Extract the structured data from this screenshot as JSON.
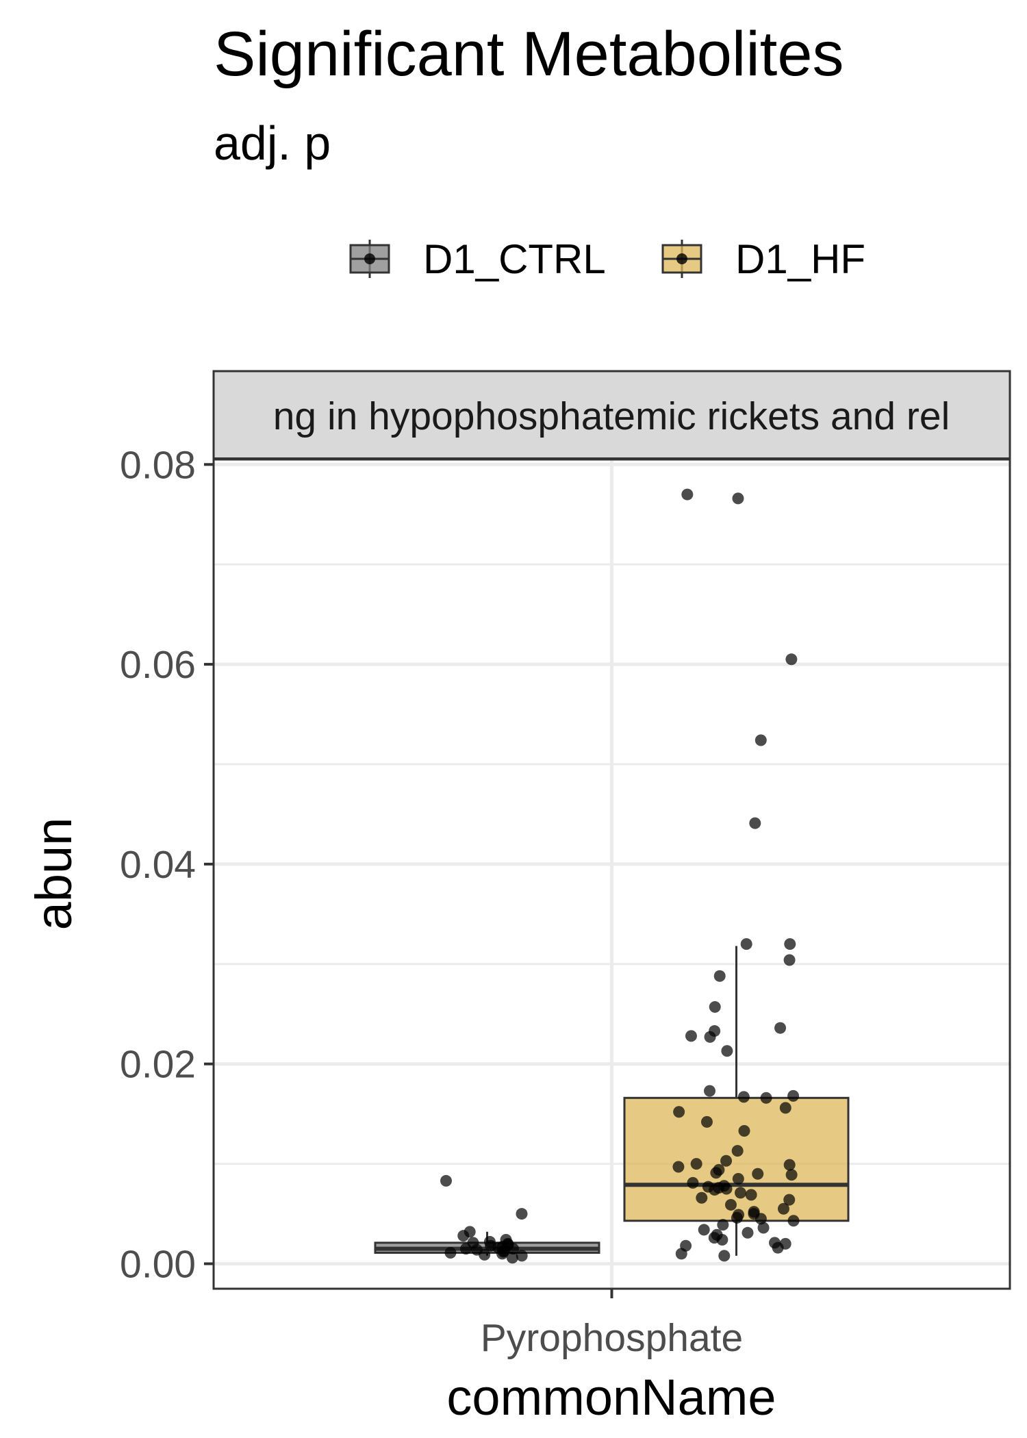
{
  "chart_data": {
    "type": "box",
    "title": "Significant Metabolites",
    "subtitle": "adj. p",
    "xlabel": "commonName",
    "ylabel": "abun",
    "facet_label": "ng in hypophosphatemic rickets and rel",
    "categories": [
      "Pyrophosphate"
    ],
    "ylim": [
      -0.0025,
      0.0805
    ],
    "yticks": [
      0.0,
      0.02,
      0.04,
      0.06,
      0.08
    ],
    "ytick_labels": [
      "0.00",
      "0.02",
      "0.04",
      "0.06",
      "0.08"
    ],
    "grid": true,
    "legend_position": "top",
    "series": [
      {
        "name": "D1_CTRL",
        "color": "#808080",
        "box": {
          "q1": 0.0011,
          "median": 0.0015,
          "q3": 0.0021,
          "whisker_low": 0.0008,
          "whisker_high": 0.0032
        },
        "points": [
          0.0083,
          0.005,
          0.0032,
          0.0028,
          0.0024,
          0.0022,
          0.0021,
          0.002,
          0.0019,
          0.0018,
          0.0017,
          0.0016,
          0.0015,
          0.0015,
          0.0014,
          0.0013,
          0.0012,
          0.0011,
          0.001,
          0.0009,
          0.0008,
          0.0006
        ]
      },
      {
        "name": "D1_HF",
        "color": "#deb75a",
        "box": {
          "q1": 0.0043,
          "median": 0.0079,
          "q3": 0.0166,
          "whisker_low": 0.0008,
          "whisker_high": 0.0318
        },
        "points": [
          0.077,
          0.0766,
          0.0605,
          0.0524,
          0.0441,
          0.032,
          0.032,
          0.0304,
          0.0288,
          0.0257,
          0.0236,
          0.0233,
          0.0228,
          0.0227,
          0.0213,
          0.0173,
          0.0168,
          0.0167,
          0.0166,
          0.0156,
          0.0152,
          0.0142,
          0.0133,
          0.0113,
          0.0103,
          0.01,
          0.0099,
          0.0097,
          0.0094,
          0.0091,
          0.009,
          0.0089,
          0.0085,
          0.0081,
          0.0078,
          0.0077,
          0.0076,
          0.0075,
          0.0074,
          0.0071,
          0.0069,
          0.0066,
          0.0064,
          0.0059,
          0.0055,
          0.0052,
          0.005,
          0.0049,
          0.0046,
          0.0045,
          0.0043,
          0.0039,
          0.0036,
          0.0034,
          0.0031,
          0.0029,
          0.0026,
          0.0024,
          0.0021,
          0.002,
          0.0018,
          0.0016,
          0.001,
          0.0008
        ]
      }
    ]
  }
}
